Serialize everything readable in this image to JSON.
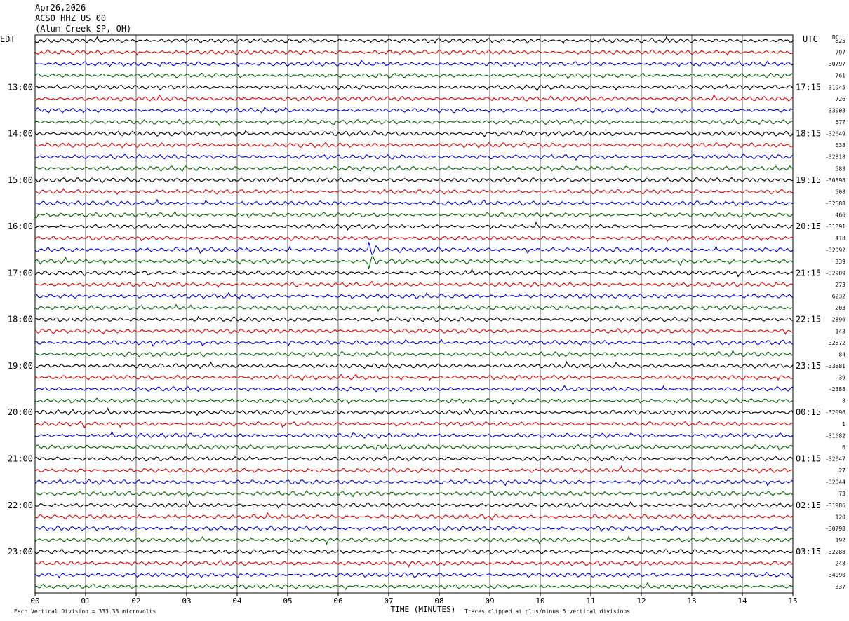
{
  "header": {
    "date": "Apr26,2026",
    "station": "ACSO HHZ US 00",
    "location": "(Alum Creek SP, OH)"
  },
  "chart_data": {
    "type": "line",
    "title": "Apr26,2026 ACSO HHZ US 00 (Alum Creek SP, OH)",
    "left_timezone": "EDT",
    "right_timezone": "UTC",
    "dc_label": "DC",
    "xlabel": "TIME (MINUTES)",
    "xlim": [
      0,
      15
    ],
    "x_ticks": [
      "00",
      "01",
      "02",
      "03",
      "04",
      "05",
      "06",
      "07",
      "08",
      "09",
      "10",
      "11",
      "12",
      "13",
      "14",
      "15"
    ],
    "grid": true,
    "left_hour_labels": [
      "13:00",
      "14:00",
      "15:00",
      "16:00",
      "17:00",
      "18:00",
      "19:00",
      "20:00",
      "21:00",
      "22:00",
      "23:00"
    ],
    "right_hour_labels": [
      "17:15",
      "18:15",
      "19:15",
      "20:15",
      "21:15",
      "22:15",
      "23:15",
      "00:15",
      "01:15",
      "02:15",
      "03:15"
    ],
    "trace_colors": [
      "#000000",
      "#e00000",
      "#0000e0",
      "#006400"
    ],
    "trace_count": 48,
    "dc_offsets": [
      "825",
      "797",
      "-30797",
      "761",
      "-31945",
      "726",
      "-33003",
      "677",
      "-32649",
      "638",
      "-32818",
      "583",
      "-30898",
      "508",
      "-32588",
      "466",
      "-31891",
      "418",
      "-32092",
      "339",
      "-32909",
      "273",
      "6232",
      "203",
      "2896",
      "143",
      "-32572",
      "84",
      "-33881",
      "39",
      "-2388",
      "8",
      "-32096",
      "1",
      "-31682",
      "6",
      "-32047",
      "27",
      "-32044",
      "73",
      "-31986",
      "120",
      "-30798",
      "192",
      "-32288",
      "248",
      "-34090",
      "337"
    ],
    "events": [
      {
        "trace": 18,
        "minute": 6.6,
        "description": "spike"
      },
      {
        "trace": 19,
        "minute": 6.6,
        "description": "spike"
      }
    ],
    "footer_left": "Each Vertical Division =  333.33 microvolts",
    "footer_right": "Traces clipped at plus/minus 5 vertical divisions"
  }
}
